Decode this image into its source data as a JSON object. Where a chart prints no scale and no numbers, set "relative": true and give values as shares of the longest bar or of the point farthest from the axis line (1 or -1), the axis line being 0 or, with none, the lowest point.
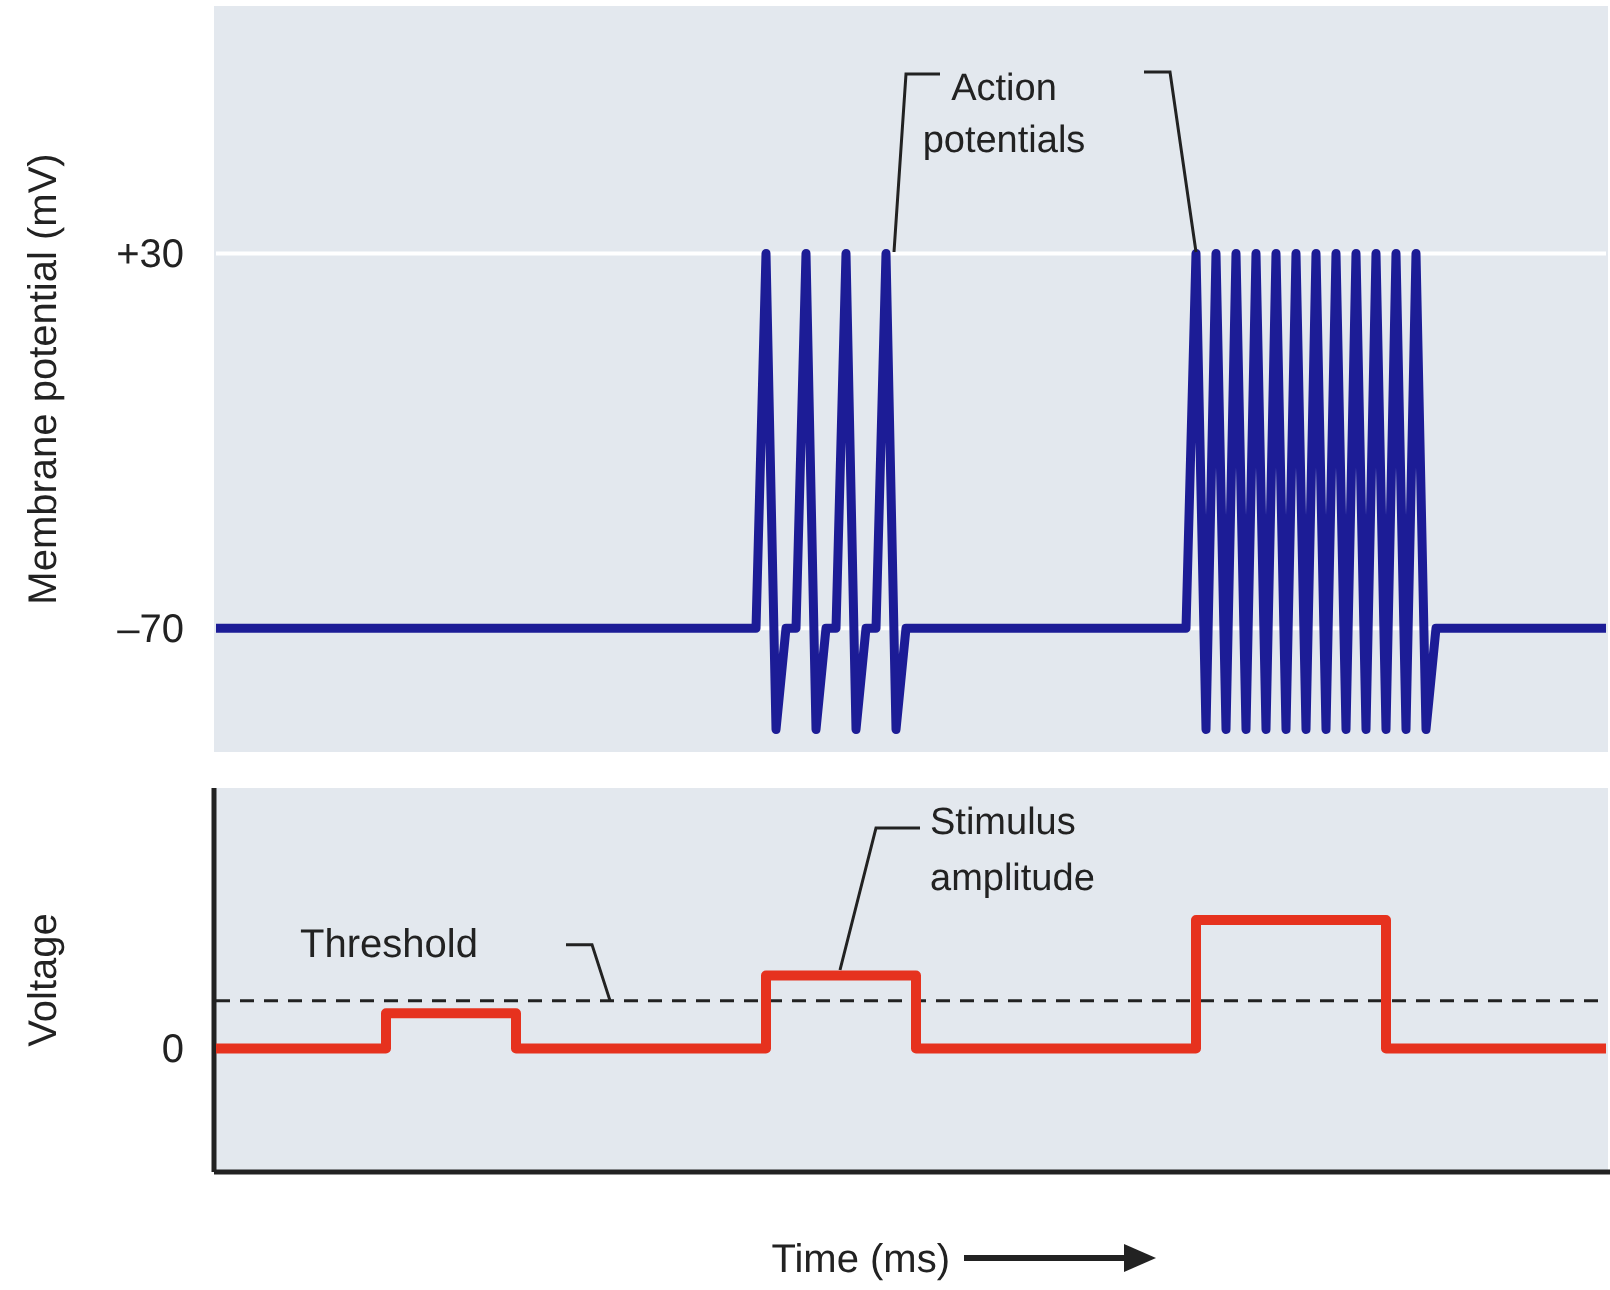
{
  "chart_data": [
    {
      "type": "line",
      "ylabel": "Membrane potential (mV)",
      "categories": [
        null,
        null,
        null,
        null,
        null,
        null,
        null,
        null,
        null,
        null,
        null,
        null,
        null,
        null,
        null,
        null,
        null,
        null,
        null,
        null,
        null,
        null,
        null,
        null,
        null,
        null,
        null,
        null,
        null,
        null,
        null,
        null,
        null,
        null,
        null,
        null,
        null,
        null,
        null,
        null,
        null,
        null,
        null,
        null,
        null,
        null,
        null,
        null,
        null,
        null,
        null,
        null,
        null,
        null,
        null,
        null,
        null,
        null,
        null,
        null,
        null,
        null,
        null,
        null,
        null,
        null,
        null,
        null,
        null,
        null,
        null,
        null,
        null,
        null,
        null,
        null,
        null,
        null,
        null,
        null,
        null,
        null,
        null,
        null,
        null,
        null,
        null,
        null,
        null,
        null,
        null,
        null,
        null,
        null,
        null,
        null,
        null,
        null,
        null,
        null,
        null,
        null,
        null,
        null,
        null,
        null,
        null,
        null,
        null,
        null,
        null,
        null,
        null,
        null,
        null,
        null,
        null,
        null,
        null,
        null,
        null,
        null,
        null,
        null,
        null,
        null,
        null,
        null,
        null,
        null,
        null,
        null,
        null,
        null,
        null,
        null,
        null,
        null,
        null,
        null
      ],
      "series": [
        {
          "color": "#1c1c96",
          "values": [
            -70,
            -70,
            -70,
            -70,
            -70,
            -70,
            -70,
            -70,
            -70,
            -70,
            -70,
            -70,
            -70,
            -70,
            -70,
            -70,
            -70,
            -70,
            -70,
            -70,
            -70,
            -70,
            -70,
            -70,
            -70,
            -70,
            -70,
            -70,
            -70,
            -70,
            -70,
            -70,
            -70,
            -70,
            -70,
            -70,
            -70,
            -70,
            -70,
            -70,
            -70,
            -70,
            -70,
            -70,
            -70,
            -70,
            -70,
            -70,
            -70,
            -70,
            -70,
            -70,
            -70,
            -70,
            -70,
            30,
            -97,
            -70,
            -70,
            30,
            -97,
            -70,
            -70,
            30,
            -97,
            -70,
            -70,
            30,
            -97,
            -70,
            -70,
            -70,
            -70,
            -70,
            -70,
            -70,
            -70,
            -70,
            -70,
            -70,
            -70,
            -70,
            -70,
            -70,
            -70,
            -70,
            -70,
            -70,
            -70,
            -70,
            -70,
            -70,
            -70,
            -70,
            -70,
            -70,
            -70,
            -70,
            30,
            -97,
            30,
            -97,
            30,
            -97,
            30,
            -97,
            30,
            -97,
            30,
            -97,
            30,
            -97,
            30,
            -97,
            30,
            -97,
            30,
            -97,
            30,
            -97,
            30,
            -97,
            -70,
            -70,
            -70,
            -70,
            -70,
            -70,
            -70,
            -70,
            -70,
            -70,
            -70,
            -70,
            -70,
            -70,
            -70,
            -70,
            -70,
            -70
          ]
        }
      ],
      "ylim": [
        -103,
        96
      ],
      "yticks": [
        {
          "value": 30,
          "label": "+30"
        },
        {
          "value": -70,
          "label": "–70"
        }
      ],
      "grid": "y",
      "annotations": [
        "Action potentials"
      ]
    },
    {
      "type": "step",
      "ylabel": "Voltage",
      "xlabel": "Time (ms)",
      "relative": true,
      "categories": [
        null,
        null,
        null,
        null,
        null,
        null,
        null,
        null,
        null,
        null,
        null,
        null,
        null,
        null,
        null,
        null,
        null,
        null,
        null,
        null,
        null,
        null,
        null,
        null,
        null,
        null,
        null,
        null,
        null,
        null,
        null,
        null,
        null,
        null,
        null,
        null,
        null,
        null,
        null,
        null,
        null,
        null,
        null,
        null,
        null,
        null,
        null,
        null,
        null,
        null,
        null,
        null,
        null,
        null,
        null,
        null,
        null,
        null,
        null,
        null,
        null,
        null,
        null,
        null,
        null,
        null,
        null,
        null,
        null,
        null,
        null,
        null,
        null,
        null,
        null,
        null,
        null,
        null,
        null,
        null,
        null,
        null,
        null,
        null,
        null,
        null,
        null,
        null,
        null,
        null,
        null,
        null,
        null,
        null,
        null,
        null,
        null,
        null,
        null,
        null,
        null,
        null,
        null,
        null,
        null,
        null,
        null,
        null,
        null,
        null,
        null,
        null,
        null,
        null,
        null,
        null,
        null,
        null,
        null,
        null,
        null,
        null,
        null,
        null,
        null,
        null,
        null,
        null,
        null,
        null,
        null,
        null,
        null,
        null,
        null,
        null,
        null,
        null,
        null,
        null
      ],
      "series": [
        {
          "color": "#e6321e",
          "values": [
            0.49,
            0.49,
            0.49,
            0.49,
            0.49,
            0.49,
            0.49,
            0.49,
            0.49,
            0.49,
            0.49,
            0.49,
            0.49,
            0.49,
            0.49,
            0.49,
            0.49,
            0.63,
            0.63,
            0.63,
            0.63,
            0.63,
            0.63,
            0.63,
            0.63,
            0.63,
            0.63,
            0.63,
            0.63,
            0.63,
            0.49,
            0.49,
            0.49,
            0.49,
            0.49,
            0.49,
            0.49,
            0.49,
            0.49,
            0.49,
            0.49,
            0.49,
            0.49,
            0.49,
            0.49,
            0.49,
            0.49,
            0.49,
            0.49,
            0.49,
            0.49,
            0.49,
            0.49,
            0.49,
            0.49,
            0.78,
            0.78,
            0.78,
            0.78,
            0.78,
            0.78,
            0.78,
            0.78,
            0.78,
            0.78,
            0.78,
            0.78,
            0.78,
            0.78,
            0.78,
            0.49,
            0.49,
            0.49,
            0.49,
            0.49,
            0.49,
            0.49,
            0.49,
            0.49,
            0.49,
            0.49,
            0.49,
            0.49,
            0.49,
            0.49,
            0.49,
            0.49,
            0.49,
            0.49,
            0.49,
            0.49,
            0.49,
            0.49,
            0.49,
            0.49,
            0.49,
            0.49,
            0.49,
            1,
            1,
            1,
            1,
            1,
            1,
            1,
            1,
            1,
            1,
            1,
            1,
            1,
            1,
            1,
            1,
            1,
            1,
            1,
            0.49,
            0.49,
            0.49,
            0.49,
            0.49,
            0.49,
            0.49,
            0.49,
            0.49,
            0.49,
            0.49,
            0.49,
            0.49,
            0.49,
            0.49,
            0.49,
            0.49,
            0.49,
            0.49,
            0.49,
            0.49,
            0.49,
            0.49
          ]
        }
      ],
      "ref_lines": [
        {
          "axis": "y",
          "value": 0.68,
          "label": "Threshold",
          "color": "#222222",
          "line_style": "dashed"
        }
      ],
      "annotations": [
        "0",
        "Stimulus amplitude"
      ]
    }
  ]
}
